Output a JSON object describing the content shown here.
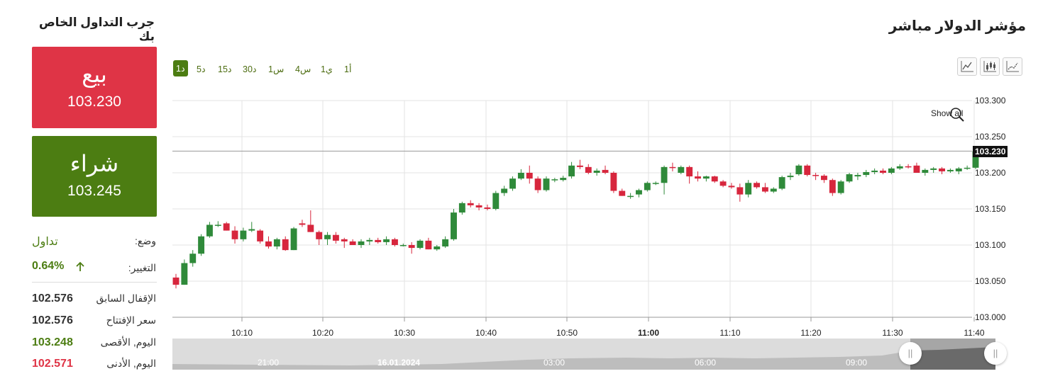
{
  "trade_panel": {
    "title": "جرب التداول الخاص بك",
    "sell_label": "بيع",
    "sell_price": "103.230",
    "buy_label": "شراء",
    "buy_price": "103.245",
    "status_label": "وضع:",
    "status_value": "تداول",
    "change_label": "التغيير:",
    "change_value": "0.64%",
    "change_icon": "arrow-up-icon",
    "stats": [
      {
        "label": "الإقفال السابق",
        "value": "102.576",
        "color": "#333333"
      },
      {
        "label": "سعر الإفتتاح",
        "value": "102.576",
        "color": "#333333"
      },
      {
        "label": "اليوم, الأقصى",
        "value": "103.248",
        "color": "#4c7d12"
      },
      {
        "label": "اليوم, الأدنى",
        "value": "102.571",
        "color": "#df3446"
      }
    ]
  },
  "header": {
    "title": "مؤشر الدولار مباشر",
    "timeframes": [
      "1أ",
      "1ي",
      "4س",
      "1س",
      "30د",
      "15د",
      "5د",
      "1د"
    ],
    "active_timeframe": "1د",
    "chart_type_icons": [
      "line-chart-icon",
      "candlestick-chart-icon",
      "bar-chart-icon"
    ]
  },
  "chart": {
    "show_all_label": "Show all",
    "current_price_label": "103.230",
    "navigator_labels": [
      "21:00",
      "16.01.2024",
      "03:00",
      "06:00",
      "09:00"
    ],
    "colors": {
      "up": "#2f8a3a",
      "down": "#d7263d",
      "grid": "#e3e3e3"
    }
  },
  "chart_data": {
    "type": "candlestick",
    "title": "",
    "ylim": [
      103.0,
      103.3
    ],
    "yticks": [
      "103.000",
      "103.050",
      "103.100",
      "103.150",
      "103.200",
      "103.250",
      "103.300"
    ],
    "xticks": [
      "10:10",
      "10:20",
      "10:30",
      "10:40",
      "10:50",
      "11:00",
      "11:10",
      "11:20",
      "11:30",
      "11:40"
    ],
    "current_price": 103.23,
    "candles_ohlc": [
      [
        103.055,
        103.06,
        103.04,
        103.045
      ],
      [
        103.045,
        103.08,
        103.045,
        103.075
      ],
      [
        103.075,
        103.093,
        103.07,
        103.088
      ],
      [
        103.088,
        103.115,
        103.085,
        103.112
      ],
      [
        103.112,
        103.132,
        103.11,
        103.128
      ],
      [
        103.128,
        103.133,
        103.125,
        103.128
      ],
      [
        103.13,
        103.132,
        103.12,
        103.12
      ],
      [
        103.12,
        103.126,
        103.102,
        103.108
      ],
      [
        103.108,
        103.124,
        103.105,
        103.12
      ],
      [
        103.12,
        103.132,
        103.118,
        103.122
      ],
      [
        103.12,
        103.122,
        103.102,
        103.105
      ],
      [
        103.105,
        103.112,
        103.095,
        103.098
      ],
      [
        103.098,
        103.11,
        103.094,
        103.108
      ],
      [
        103.108,
        103.112,
        103.092,
        103.093
      ],
      [
        103.093,
        103.125,
        103.093,
        103.123
      ],
      [
        103.13,
        103.135,
        103.125,
        103.128
      ],
      [
        103.128,
        103.148,
        103.118,
        103.118
      ],
      [
        103.118,
        103.12,
        103.1,
        103.108
      ],
      [
        103.108,
        103.118,
        103.1,
        103.114
      ],
      [
        103.114,
        103.118,
        103.102,
        103.106
      ],
      [
        103.108,
        103.11,
        103.096,
        103.105
      ],
      [
        103.105,
        103.108,
        103.1,
        103.1
      ],
      [
        103.1,
        103.108,
        103.096,
        103.105
      ],
      [
        103.105,
        103.11,
        103.1,
        103.107
      ],
      [
        103.107,
        103.11,
        103.102,
        103.104
      ],
      [
        103.104,
        103.112,
        103.1,
        103.108
      ],
      [
        103.108,
        103.11,
        103.098,
        103.1
      ],
      [
        103.1,
        103.102,
        103.098,
        103.1
      ],
      [
        103.1,
        103.104,
        103.088,
        103.096
      ],
      [
        103.096,
        103.108,
        103.094,
        103.106
      ],
      [
        103.106,
        103.11,
        103.094,
        103.094
      ],
      [
        103.094,
        103.1,
        103.092,
        103.098
      ],
      [
        103.098,
        103.112,
        103.096,
        103.108
      ],
      [
        103.108,
        103.15,
        103.106,
        103.145
      ],
      [
        103.145,
        103.16,
        103.142,
        103.158
      ],
      [
        103.158,
        103.162,
        103.152,
        103.155
      ],
      [
        103.155,
        103.158,
        103.148,
        103.152
      ],
      [
        103.152,
        103.156,
        103.148,
        103.15
      ],
      [
        103.15,
        103.175,
        103.148,
        103.172
      ],
      [
        103.172,
        103.182,
        103.168,
        103.178
      ],
      [
        103.178,
        103.195,
        103.175,
        103.192
      ],
      [
        103.192,
        103.205,
        103.19,
        103.2
      ],
      [
        103.2,
        103.21,
        103.185,
        103.192
      ],
      [
        103.192,
        103.195,
        103.172,
        103.176
      ],
      [
        103.176,
        103.195,
        103.174,
        103.192
      ],
      [
        103.19,
        103.193,
        103.187,
        103.191
      ],
      [
        103.19,
        103.196,
        103.188,
        103.193
      ],
      [
        103.195,
        103.215,
        103.192,
        103.21
      ],
      [
        103.21,
        103.218,
        103.205,
        103.208
      ],
      [
        103.208,
        103.212,
        103.198,
        103.2
      ],
      [
        103.2,
        103.206,
        103.196,
        103.203
      ],
      [
        103.204,
        103.21,
        103.198,
        103.2
      ],
      [
        103.2,
        103.202,
        103.172,
        103.175
      ],
      [
        103.175,
        103.178,
        103.168,
        103.168
      ],
      [
        103.168,
        103.172,
        103.164,
        103.168
      ],
      [
        103.17,
        103.178,
        103.166,
        103.176
      ],
      [
        103.176,
        103.188,
        103.174,
        103.186
      ],
      [
        103.185,
        103.188,
        103.183,
        103.186
      ],
      [
        103.186,
        103.21,
        103.17,
        103.208
      ],
      [
        103.208,
        103.214,
        103.202,
        103.207
      ],
      [
        103.2,
        103.21,
        103.198,
        103.208
      ],
      [
        103.208,
        103.21,
        103.185,
        103.195
      ],
      [
        103.195,
        103.202,
        103.188,
        103.192
      ],
      [
        103.192,
        103.196,
        103.188,
        103.195
      ],
      [
        103.195,
        103.196,
        103.186,
        103.188
      ],
      [
        103.188,
        103.19,
        103.18,
        103.182
      ],
      [
        103.182,
        103.186,
        103.178,
        103.18
      ],
      [
        103.18,
        103.185,
        103.16,
        103.17
      ],
      [
        103.17,
        103.19,
        103.166,
        103.186
      ],
      [
        103.186,
        103.188,
        103.178,
        103.18
      ],
      [
        103.18,
        103.186,
        103.172,
        103.174
      ],
      [
        103.174,
        103.18,
        103.172,
        103.178
      ],
      [
        103.178,
        103.196,
        103.176,
        103.194
      ],
      [
        103.194,
        103.2,
        103.19,
        103.196
      ],
      [
        103.198,
        103.212,
        103.196,
        103.21
      ],
      [
        103.21,
        103.212,
        103.195,
        103.197
      ],
      [
        103.197,
        103.2,
        103.19,
        103.196
      ],
      [
        103.196,
        103.198,
        103.186,
        103.19
      ],
      [
        103.19,
        103.192,
        103.168,
        103.172
      ],
      [
        103.172,
        103.19,
        103.17,
        103.188
      ],
      [
        103.188,
        103.2,
        103.186,
        103.198
      ],
      [
        103.195,
        103.2,
        103.19,
        103.197
      ],
      [
        103.197,
        103.204,
        103.194,
        103.201
      ],
      [
        103.201,
        103.206,
        103.198,
        103.203
      ],
      [
        103.203,
        103.206,
        103.198,
        103.2
      ],
      [
        103.2,
        103.208,
        103.198,
        103.206
      ],
      [
        103.206,
        103.212,
        103.204,
        103.209
      ],
      [
        103.209,
        103.212,
        103.206,
        103.208
      ],
      [
        103.21,
        103.214,
        103.2,
        103.2
      ],
      [
        103.2,
        103.206,
        103.196,
        103.204
      ],
      [
        103.204,
        103.208,
        103.2,
        103.206
      ],
      [
        103.206,
        103.208,
        103.198,
        103.202
      ],
      [
        103.202,
        103.206,
        103.2,
        103.204
      ],
      [
        103.202,
        103.208,
        103.198,
        103.206
      ],
      [
        103.206,
        103.21,
        103.204,
        103.207
      ],
      [
        103.207,
        103.235,
        103.205,
        103.23
      ]
    ]
  }
}
